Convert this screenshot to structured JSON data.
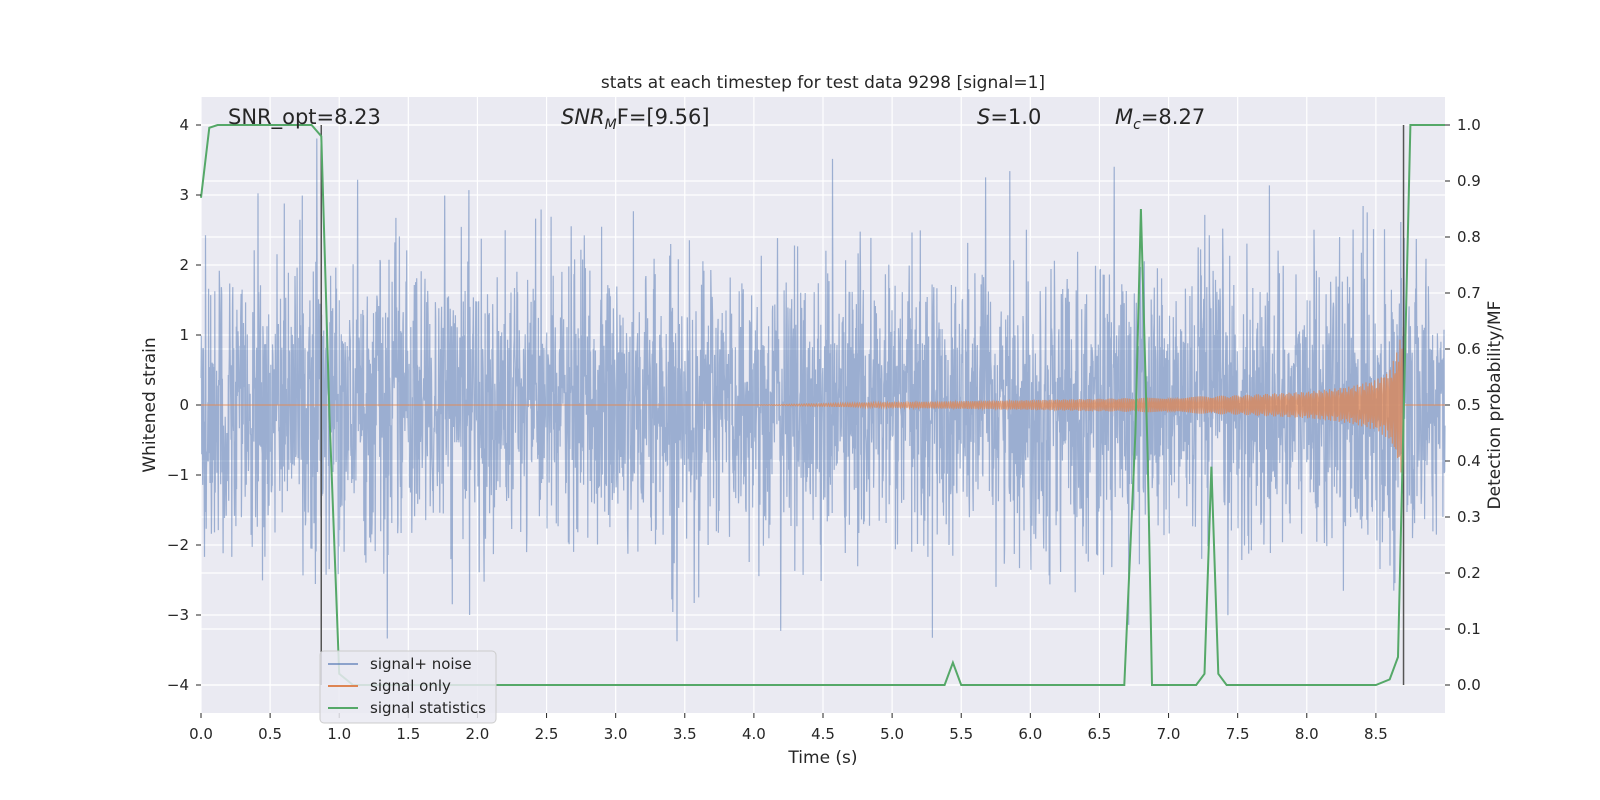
{
  "chart_data": {
    "type": "line",
    "title": "stats at each timestep for test data 9298 [signal=1]",
    "xlabel": "Time (s)",
    "ylabel": "Whitened strain",
    "y2label": "Detection probability/MF",
    "xlim": [
      0.0,
      9.0
    ],
    "ylim": [
      -4.4,
      4.4
    ],
    "y2lim": [
      -0.05,
      1.05
    ],
    "xticks": [
      0.0,
      0.5,
      1.0,
      1.5,
      2.0,
      2.5,
      3.0,
      3.5,
      4.0,
      4.5,
      5.0,
      5.5,
      6.0,
      6.5,
      7.0,
      7.5,
      8.0,
      8.5
    ],
    "xtick_labels": [
      "0.0",
      "0.5",
      "1.0",
      "1.5",
      "2.0",
      "2.5",
      "3.0",
      "3.5",
      "4.0",
      "4.5",
      "5.0",
      "5.5",
      "6.0",
      "6.5",
      "7.0",
      "7.5",
      "8.0",
      "8.5"
    ],
    "yticks": [
      -4,
      -3,
      -2,
      -1,
      0,
      1,
      2,
      3,
      4
    ],
    "ytick_labels": [
      "−4",
      "−3",
      "−2",
      "−1",
      "0",
      "1",
      "2",
      "3",
      "4"
    ],
    "y2ticks": [
      0.0,
      0.1,
      0.2,
      0.3,
      0.4,
      0.5,
      0.6,
      0.7,
      0.8,
      0.9,
      1.0
    ],
    "y2tick_labels": [
      "0.0",
      "0.1",
      "0.2",
      "0.3",
      "0.4",
      "0.5",
      "0.6",
      "0.7",
      "0.8",
      "0.9",
      "1.0"
    ],
    "grid": true,
    "legend_placement": "lower-left",
    "annotations": {
      "snr_opt": "SNR_opt=8.23",
      "snr_mf_base": "SNR",
      "snr_mf_sub": "M",
      "snr_mf_rest": "F=[9.56]",
      "s_var": "S",
      "s_val": "=1.0",
      "mc_var": "M",
      "mc_sub": "c",
      "mc_val": "=8.27"
    },
    "vlines": [
      0.87,
      8.7
    ],
    "series": [
      {
        "name": "signal+ noise",
        "color": "#4c72b0",
        "noise_sigma": 1.0,
        "noise_clip": 4.0
      },
      {
        "name": "signal only",
        "color": "#dd8452",
        "envelope": {
          "t": [
            4.0,
            5.0,
            6.0,
            7.0,
            7.5,
            8.0,
            8.3,
            8.5,
            8.6,
            8.65,
            8.7
          ],
          "amp": [
            0.0,
            0.04,
            0.07,
            0.11,
            0.14,
            0.19,
            0.26,
            0.36,
            0.5,
            0.75,
            1.15
          ]
        }
      },
      {
        "name": "signal statistics",
        "color": "#55a868",
        "axis": "right",
        "x": [
          0.0,
          0.06,
          0.12,
          0.3,
          0.5,
          0.7,
          0.8,
          0.87,
          0.93,
          1.0,
          1.1,
          2.0,
          3.0,
          4.0,
          5.0,
          5.38,
          5.44,
          5.5,
          6.0,
          6.68,
          6.76,
          6.8,
          6.85,
          6.88,
          7.0,
          7.2,
          7.26,
          7.31,
          7.36,
          7.42,
          8.0,
          8.5,
          8.6,
          8.66,
          8.75,
          8.9,
          9.0
        ],
        "y": [
          0.87,
          0.995,
          1.0,
          1.0,
          1.0,
          1.0,
          1.0,
          0.98,
          0.48,
          0.02,
          0.0,
          0.0,
          0.0,
          0.0,
          0.0,
          0.0,
          0.04,
          0.0,
          0.0,
          0.0,
          0.45,
          0.85,
          0.4,
          0.0,
          0.0,
          0.0,
          0.02,
          0.39,
          0.02,
          0.0,
          0.0,
          0.0,
          0.01,
          0.05,
          1.0,
          1.0,
          1.0
        ]
      }
    ]
  }
}
